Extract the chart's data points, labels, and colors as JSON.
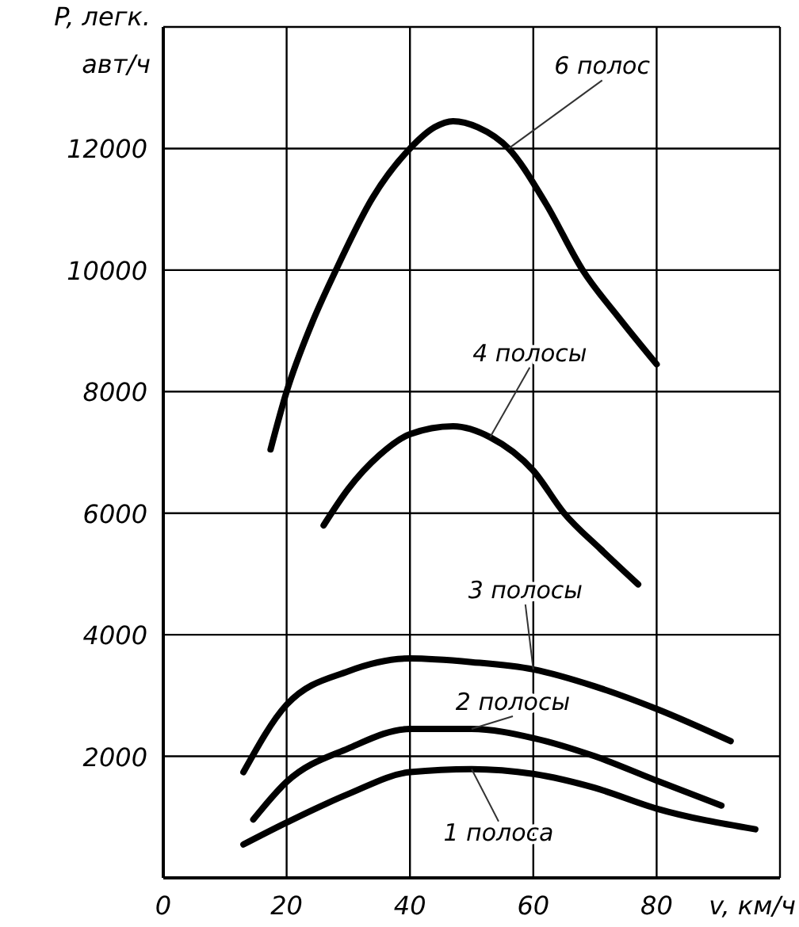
{
  "chart_data": {
    "type": "line",
    "xlabel": "v, км/ч",
    "ylabel": "P, легк. авт/ч",
    "xlim": [
      0,
      100
    ],
    "ylim": [
      0,
      14000
    ],
    "xticks": [
      0,
      20,
      40,
      60,
      80,
      {
        "value": 100,
        "label": null
      }
    ],
    "yticks": [
      2000,
      4000,
      6000,
      8000,
      10000,
      12000,
      {
        "value": 14000,
        "label": null
      }
    ],
    "grid": true,
    "line_style": "solid",
    "marker": "none",
    "series": [
      {
        "name": "6 полос",
        "color": "#000000",
        "x": [
          17.4,
          20,
          24,
          28,
          34,
          40,
          44,
          47,
          51,
          56,
          62,
          68,
          74,
          80
        ],
        "values": [
          7050,
          8000,
          9100,
          10000,
          11200,
          12000,
          12350,
          12450,
          12350,
          12000,
          11100,
          10000,
          9200,
          8450
        ]
      },
      {
        "name": "4 полосы",
        "color": "#000000",
        "x": [
          26,
          30,
          35,
          40,
          47,
          53,
          60,
          65,
          71,
          77
        ],
        "values": [
          5800,
          6400,
          6950,
          7300,
          7430,
          7250,
          6700,
          6000,
          5400,
          4830
        ]
      },
      {
        "name": "3 полосы",
        "color": "#000000",
        "x": [
          13,
          20,
          30,
          40,
          50,
          60,
          70,
          80,
          92
        ],
        "values": [
          1740,
          2850,
          3400,
          3610,
          3550,
          3430,
          3150,
          2780,
          2250
        ]
      },
      {
        "name": "2 полосы",
        "color": "#000000",
        "x": [
          14.6,
          20,
          30,
          40,
          50,
          60,
          70,
          80,
          90.5
        ],
        "values": [
          960,
          1580,
          2130,
          2450,
          2450,
          2300,
          2000,
          1600,
          1190
        ]
      },
      {
        "name": "1 полоса",
        "color": "#000000",
        "x": [
          13,
          20,
          30,
          40,
          50,
          60,
          70,
          80,
          96
        ],
        "values": [
          550,
          910,
          1380,
          1740,
          1790,
          1710,
          1480,
          1140,
          800
        ]
      }
    ]
  }
}
